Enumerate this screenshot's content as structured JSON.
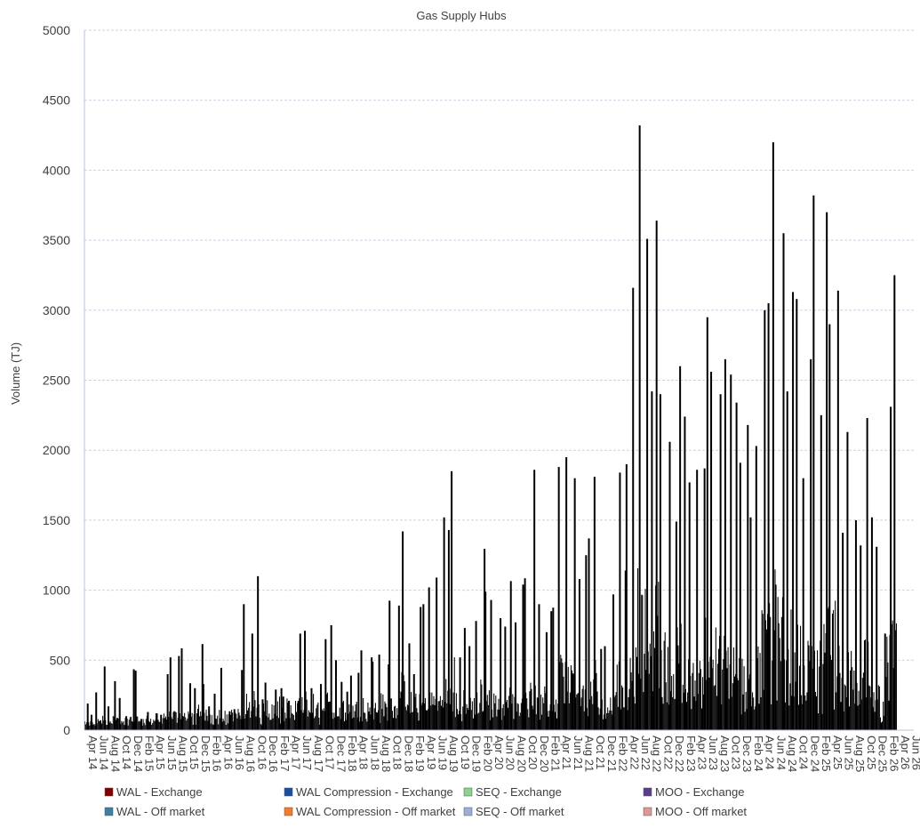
{
  "chart_data": {
    "type": "bar",
    "title": "Gas Supply Hubs",
    "ylabel": "Volume (TJ)",
    "xlabel": "",
    "ylim": [
      0,
      5000
    ],
    "yticks": [
      0,
      500,
      1000,
      1500,
      2000,
      2500,
      3000,
      3500,
      4000,
      4500,
      5000
    ],
    "grid": true,
    "legend_position": "bottom",
    "x_tick_labels": [
      "Apr 14",
      "Jun 14",
      "Aug 14",
      "Oct 14",
      "Dec 14",
      "Feb 15",
      "Apr 15",
      "Jun 15",
      "Aug 15",
      "Oct 15",
      "Dec 15",
      "Feb 16",
      "Apr 16",
      "Jun 16",
      "Aug 16",
      "Oct 16",
      "Dec 16",
      "Feb 17",
      "Apr 17",
      "Jun 17",
      "Aug 17",
      "Oct 17",
      "Dec 17",
      "Feb 18",
      "Apr 18",
      "Jun 18",
      "Aug 18",
      "Oct 18",
      "Dec 18",
      "Feb 19",
      "Apr 19",
      "Jun 19",
      "Aug 19",
      "Oct 19",
      "Dec 19",
      "Feb 20",
      "Apr 20",
      "Jun 20",
      "Aug 20",
      "Oct 20",
      "Dec 20",
      "Feb 21",
      "Apr 21",
      "Jun 21",
      "Aug 21",
      "Oct 21",
      "Dec 21",
      "Feb 22",
      "Apr 22",
      "Jun 22",
      "Aug 22",
      "Oct 22",
      "Dec 22",
      "Feb 23",
      "Apr 23",
      "Jun 23",
      "Aug 23",
      "Oct 23",
      "Dec 23",
      "Feb 24",
      "Apr 24",
      "Jun 24",
      "Aug 24",
      "Oct 24",
      "Dec 24",
      "Feb 25",
      "Apr 25",
      "Jun 25",
      "Aug 25",
      "Oct 25",
      "Dec 25",
      "Feb 26",
      "Apr 26",
      "Jun 26"
    ],
    "x_start": "2014-04",
    "x_end": "2026-06",
    "series": [
      {
        "name": "WAL - Exchange",
        "color": "#7f0000"
      },
      {
        "name": "WAL Compression - Exchange",
        "color": "#1f4e9b"
      },
      {
        "name": "SEQ - Exchange",
        "color": "#8fd18f"
      },
      {
        "name": "MOO - Exchange",
        "color": "#5b3e8a"
      },
      {
        "name": "WAL - Off market",
        "color": "#3f7f9f"
      },
      {
        "name": "WAL Compression - Off market",
        "color": "#ed7d31"
      },
      {
        "name": "SEQ - Off market",
        "color": "#9dafd6"
      },
      {
        "name": "MOO - Off market",
        "color": "#d99a94"
      }
    ],
    "bar_color_displayed": "#000000",
    "peaks": [
      {
        "x": "2014-04",
        "v": 190
      },
      {
        "x": "2014-05",
        "v": 110
      },
      {
        "x": "2014-06",
        "v": 270
      },
      {
        "x": "2014-07",
        "v": 455
      },
      {
        "x": "2014-08",
        "v": 170
      },
      {
        "x": "2014-09",
        "v": 350
      },
      {
        "x": "2014-10",
        "v": 230
      },
      {
        "x": "2014-11",
        "v": 100
      },
      {
        "x": "2014-12",
        "v": 435
      },
      {
        "x": "2015-01",
        "v": 425
      },
      {
        "x": "2015-02",
        "v": 80
      },
      {
        "x": "2015-03",
        "v": 130
      },
      {
        "x": "2015-04",
        "v": 120
      },
      {
        "x": "2015-05",
        "v": 110
      },
      {
        "x": "2015-06",
        "v": 400
      },
      {
        "x": "2015-07",
        "v": 520
      },
      {
        "x": "2015-08",
        "v": 530
      },
      {
        "x": "2015-09",
        "v": 585
      },
      {
        "x": "2015-10",
        "v": 335
      },
      {
        "x": "2015-11",
        "v": 300
      },
      {
        "x": "2015-12",
        "v": 615
      },
      {
        "x": "2016-01",
        "v": 330
      },
      {
        "x": "2016-02",
        "v": 170
      },
      {
        "x": "2016-03",
        "v": 260
      },
      {
        "x": "2016-04",
        "v": 445
      },
      {
        "x": "2016-05",
        "v": 135
      },
      {
        "x": "2016-06",
        "v": 150
      },
      {
        "x": "2016-07",
        "v": 430
      },
      {
        "x": "2016-08",
        "v": 900
      },
      {
        "x": "2016-09",
        "v": 690
      },
      {
        "x": "2016-10",
        "v": 1100
      },
      {
        "x": "2016-11",
        "v": 220
      },
      {
        "x": "2016-12",
        "v": 340
      },
      {
        "x": "2017-01",
        "v": 290
      },
      {
        "x": "2017-02",
        "v": 300
      },
      {
        "x": "2017-03",
        "v": 240
      },
      {
        "x": "2017-04",
        "v": 210
      },
      {
        "x": "2017-05",
        "v": 210
      },
      {
        "x": "2017-06",
        "v": 690
      },
      {
        "x": "2017-07",
        "v": 710
      },
      {
        "x": "2017-08",
        "v": 300
      },
      {
        "x": "2017-09",
        "v": 330
      },
      {
        "x": "2017-10",
        "v": 650
      },
      {
        "x": "2017-11",
        "v": 750
      },
      {
        "x": "2017-12",
        "v": 500
      },
      {
        "x": "2018-01",
        "v": 345
      },
      {
        "x": "2018-02",
        "v": 275
      },
      {
        "x": "2018-03",
        "v": 390
      },
      {
        "x": "2018-04",
        "v": 410
      },
      {
        "x": "2018-05",
        "v": 570
      },
      {
        "x": "2018-06",
        "v": 520
      },
      {
        "x": "2018-07",
        "v": 490
      },
      {
        "x": "2018-08",
        "v": 540
      },
      {
        "x": "2018-09",
        "v": 470
      },
      {
        "x": "2018-10",
        "v": 925
      },
      {
        "x": "2018-11",
        "v": 890
      },
      {
        "x": "2018-12",
        "v": 1420
      },
      {
        "x": "2019-01",
        "v": 620
      },
      {
        "x": "2019-02",
        "v": 400
      },
      {
        "x": "2019-03",
        "v": 880
      },
      {
        "x": "2019-04",
        "v": 900
      },
      {
        "x": "2019-05",
        "v": 1020
      },
      {
        "x": "2019-06",
        "v": 1090
      },
      {
        "x": "2019-07",
        "v": 1520
      },
      {
        "x": "2019-08",
        "v": 1430
      },
      {
        "x": "2019-09",
        "v": 1850
      },
      {
        "x": "2019-10",
        "v": 520
      },
      {
        "x": "2019-11",
        "v": 730
      },
      {
        "x": "2019-12",
        "v": 600
      },
      {
        "x": "2020-01",
        "v": 780
      },
      {
        "x": "2020-02",
        "v": 1295
      },
      {
        "x": "2020-03",
        "v": 990
      },
      {
        "x": "2020-04",
        "v": 930
      },
      {
        "x": "2020-05",
        "v": 800
      },
      {
        "x": "2020-06",
        "v": 740
      },
      {
        "x": "2020-07",
        "v": 1065
      },
      {
        "x": "2020-08",
        "v": 770
      },
      {
        "x": "2020-09",
        "v": 1040
      },
      {
        "x": "2020-10",
        "v": 1085
      },
      {
        "x": "2020-11",
        "v": 1860
      },
      {
        "x": "2020-12",
        "v": 900
      },
      {
        "x": "2021-01",
        "v": 700
      },
      {
        "x": "2021-02",
        "v": 850
      },
      {
        "x": "2021-03",
        "v": 875
      },
      {
        "x": "2021-04",
        "v": 1880
      },
      {
        "x": "2021-05",
        "v": 1950
      },
      {
        "x": "2021-06",
        "v": 1800
      },
      {
        "x": "2021-07",
        "v": 1080
      },
      {
        "x": "2021-08",
        "v": 1250
      },
      {
        "x": "2021-09",
        "v": 1370
      },
      {
        "x": "2021-10",
        "v": 1810
      },
      {
        "x": "2021-11",
        "v": 580
      },
      {
        "x": "2021-12",
        "v": 600
      },
      {
        "x": "2022-01",
        "v": 970
      },
      {
        "x": "2022-02",
        "v": 1840
      },
      {
        "x": "2022-03",
        "v": 1140
      },
      {
        "x": "2022-04",
        "v": 1900
      },
      {
        "x": "2022-05",
        "v": 3160
      },
      {
        "x": "2022-06",
        "v": 4320
      },
      {
        "x": "2022-07",
        "v": 3510
      },
      {
        "x": "2022-08",
        "v": 2420
      },
      {
        "x": "2022-09",
        "v": 3640
      },
      {
        "x": "2022-10",
        "v": 2400
      },
      {
        "x": "2022-11",
        "v": 2060
      },
      {
        "x": "2022-12",
        "v": 1490
      },
      {
        "x": "2023-01",
        "v": 2600
      },
      {
        "x": "2023-02",
        "v": 2240
      },
      {
        "x": "2023-03",
        "v": 1770
      },
      {
        "x": "2023-04",
        "v": 1860
      },
      {
        "x": "2023-05",
        "v": 1870
      },
      {
        "x": "2023-06",
        "v": 2950
      },
      {
        "x": "2023-07",
        "v": 2560
      },
      {
        "x": "2023-08",
        "v": 2400
      },
      {
        "x": "2023-09",
        "v": 2650
      },
      {
        "x": "2023-10",
        "v": 2540
      },
      {
        "x": "2023-11",
        "v": 2340
      },
      {
        "x": "2023-12",
        "v": 1910
      },
      {
        "x": "2024-01",
        "v": 2180
      },
      {
        "x": "2024-02",
        "v": 1520
      },
      {
        "x": "2024-03",
        "v": 2030
      },
      {
        "x": "2024-04",
        "v": 3000
      },
      {
        "x": "2024-05",
        "v": 3050
      },
      {
        "x": "2024-06",
        "v": 4200
      },
      {
        "x": "2024-07",
        "v": 3550
      },
      {
        "x": "2024-08",
        "v": 2420
      },
      {
        "x": "2024-09",
        "v": 3130
      },
      {
        "x": "2024-10",
        "v": 3080
      },
      {
        "x": "2024-11",
        "v": 1800
      },
      {
        "x": "2024-12",
        "v": 2650
      },
      {
        "x": "2025-01",
        "v": 3820
      },
      {
        "x": "2025-02",
        "v": 2250
      },
      {
        "x": "2025-03",
        "v": 3700
      },
      {
        "x": "2025-04",
        "v": 2900
      },
      {
        "x": "2025-05",
        "v": 3140
      },
      {
        "x": "2025-06",
        "v": 1410
      },
      {
        "x": "2025-07",
        "v": 2130
      },
      {
        "x": "2025-08",
        "v": 1500
      },
      {
        "x": "2025-09",
        "v": 1320
      },
      {
        "x": "2025-10",
        "v": 2230
      },
      {
        "x": "2025-11",
        "v": 1520
      },
      {
        "x": "2025-12",
        "v": 1310
      },
      {
        "x": "2026-01",
        "v": 690
      },
      {
        "x": "2026-02",
        "v": 2310
      },
      {
        "x": "2026-03",
        "v": 3250
      }
    ]
  }
}
